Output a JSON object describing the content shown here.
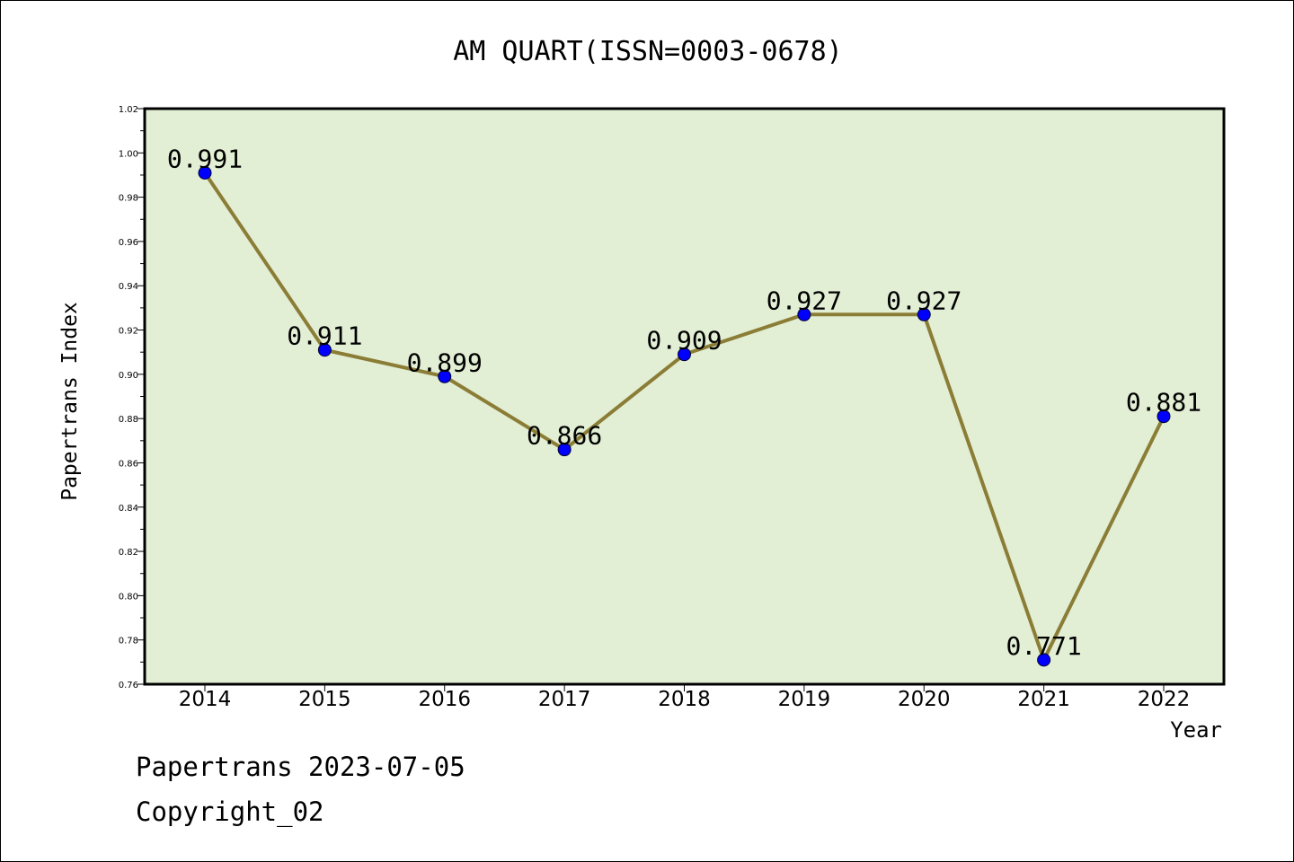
{
  "chart_data": {
    "type": "line",
    "title": "AM QUART(ISSN=0003-0678)",
    "xlabel": "Year",
    "ylabel": "Papertrans Index",
    "categories": [
      "2014",
      "2015",
      "2016",
      "2017",
      "2018",
      "2019",
      "2020",
      "2021",
      "2022"
    ],
    "values": [
      0.991,
      0.911,
      0.899,
      0.866,
      0.909,
      0.927,
      0.927,
      0.771,
      0.881
    ],
    "data_labels": [
      "0.991",
      "0.911",
      "0.899",
      "0.866",
      "0.909",
      "0.927",
      "0.927",
      "0.771",
      "0.881"
    ],
    "ylim": [
      0.76,
      1.02
    ],
    "yticks": [
      "0.76",
      "0.78",
      "0.80",
      "0.82",
      "0.84",
      "0.86",
      "0.88",
      "0.90",
      "0.92",
      "0.94",
      "0.96",
      "0.98",
      "1.00",
      "1.02"
    ],
    "grid": false,
    "line_color": "#8b7d36",
    "marker_color": "#0000ff",
    "plot_background": "#e2efd5"
  },
  "footer": {
    "line1": "Papertrans 2023-07-05",
    "line2": "Copyright_02"
  }
}
